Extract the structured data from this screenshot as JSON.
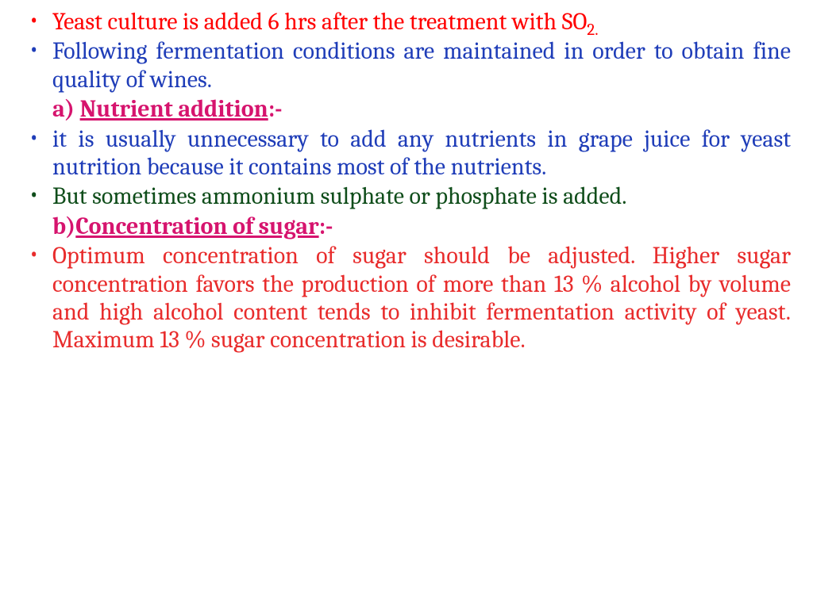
{
  "colors": {
    "red": "#ff0000",
    "blue": "#1f3db8",
    "pink": "#d6146e",
    "darkgreen": "#0f4d1a",
    "orangered": "#e82c2c"
  },
  "items": {
    "b1_a": "Yeast culture is added 6 hrs after the treatment with SO",
    "b1_sub": "2.",
    "b2": "Following fermentation conditions are maintained in order to obtain fine quality of wines.",
    "h1_a": "a) ",
    "h1_b": "Nutrient addition",
    "h1_c": ":-",
    "b3": "it is usually unnecessary to add any nutrients in grape juice for yeast nutrition because it contains most of the nutrients.",
    "b4": "But sometimes ammonium sulphate or phosphate is added.",
    "h2_a": "b)",
    "h2_b": "Concentration of sugar",
    "h2_c": ":-",
    "b5": "Optimum concentration of sugar should be adjusted. Higher sugar concentration favors the production of more than 13 % alcohol by volume and high alcohol content tends to inhibit fermentation activity of yeast. Maximum 13 % sugar concentration is desirable."
  }
}
